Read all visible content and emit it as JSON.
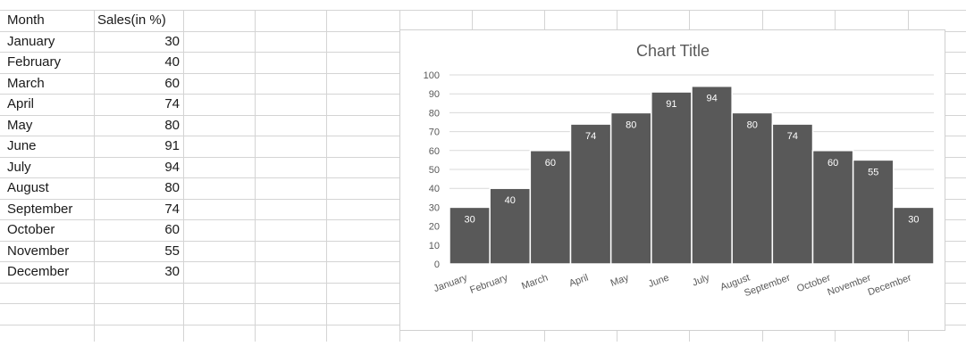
{
  "table": {
    "headers": [
      "Month",
      "Sales(in %)"
    ],
    "rows": [
      {
        "month": "January",
        "value": "30"
      },
      {
        "month": "February",
        "value": "40"
      },
      {
        "month": "March",
        "value": "60"
      },
      {
        "month": "April",
        "value": "74"
      },
      {
        "month": "May",
        "value": "80"
      },
      {
        "month": "June",
        "value": "91"
      },
      {
        "month": "July",
        "value": "94"
      },
      {
        "month": "August",
        "value": "80"
      },
      {
        "month": "September",
        "value": "74"
      },
      {
        "month": "October",
        "value": "60"
      },
      {
        "month": "November",
        "value": "55"
      },
      {
        "month": "December",
        "value": "30"
      }
    ]
  },
  "chart_data": {
    "type": "bar",
    "title": "Chart Title",
    "categories": [
      "January",
      "February",
      "March",
      "April",
      "May",
      "June",
      "July",
      "August",
      "September",
      "October",
      "November",
      "December"
    ],
    "values": [
      30,
      40,
      60,
      74,
      80,
      91,
      94,
      80,
      74,
      60,
      55,
      30
    ],
    "ylim": [
      0,
      100
    ],
    "yticks": [
      "0",
      "10",
      "20",
      "30",
      "40",
      "50",
      "60",
      "70",
      "80",
      "90",
      "100"
    ],
    "grid": true,
    "legend": "none",
    "xlabel": "",
    "ylabel": "",
    "colors": {
      "bar": "#595959",
      "bar_edge": "#ffffff",
      "gridline": "#d9d9d9",
      "axis_text": "#595959",
      "title": "#595959",
      "data_label": "#ffffff"
    }
  },
  "colors": {
    "sheet_grid": "#d4d4d4",
    "cell_text": "#1a1a1a"
  }
}
